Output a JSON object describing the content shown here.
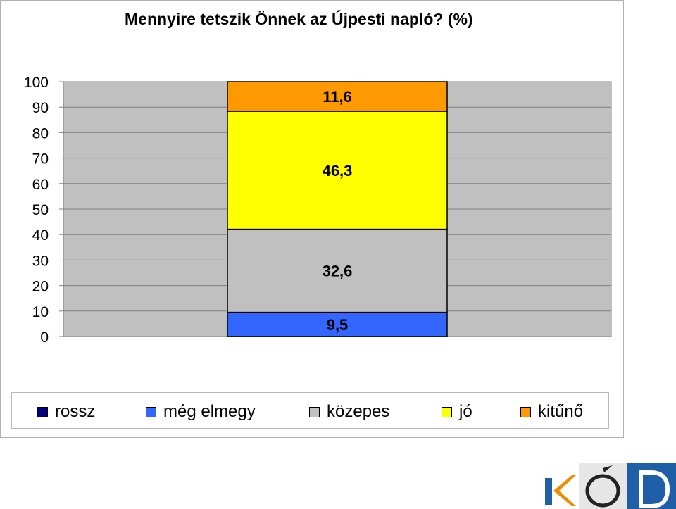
{
  "chart_data": {
    "type": "bar",
    "stacked": true,
    "title": "Mennyire tetszik Önnek az Újpesti napló? (%)",
    "xlabel": "",
    "ylabel": "",
    "ylim": [
      0,
      100
    ],
    "yticks": [
      "0",
      "10",
      "20",
      "30",
      "40",
      "50",
      "60",
      "70",
      "80",
      "90",
      "100"
    ],
    "grid": true,
    "legend_position": "bottom",
    "categories": [
      ""
    ],
    "series": [
      {
        "name": "rossz",
        "values": [
          0
        ],
        "color": "#000080",
        "label": ""
      },
      {
        "name": "még elmegy",
        "values": [
          9.5
        ],
        "color": "#3366ff",
        "label": "9,5"
      },
      {
        "name": "közepes",
        "values": [
          32.6
        ],
        "color": "#c0c0c0",
        "label": "32,6"
      },
      {
        "name": "jó",
        "values": [
          46.3
        ],
        "color": "#ffff00",
        "label": "46,3"
      },
      {
        "name": "kitűnő",
        "values": [
          11.6
        ],
        "color": "#ff9900",
        "label": "11,6"
      }
    ],
    "plot_background": "#c0c0c0"
  },
  "logo": {
    "text": "KÓD",
    "colors": {
      "blue": "#1f5fa8",
      "orange": "#f08c00",
      "dark": "#222222"
    }
  }
}
